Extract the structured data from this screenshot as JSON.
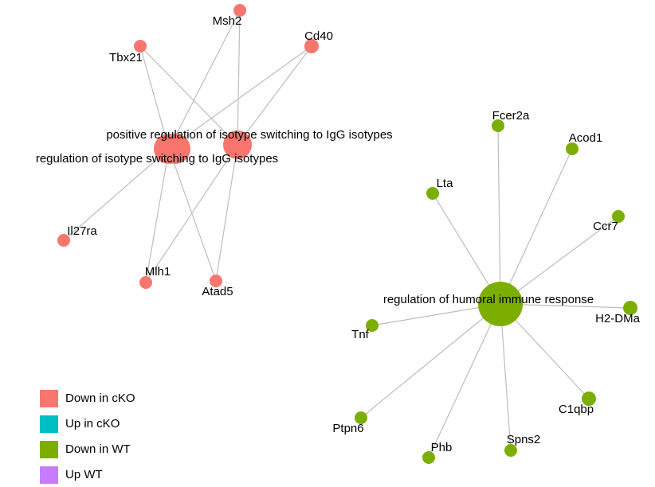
{
  "nodes": [
    {
      "label": "Msh2"
    },
    {
      "label": "Cd40"
    },
    {
      "label": "Tbx21"
    },
    {
      "label": "positive regulation of isotype switching to IgG isotypes"
    },
    {
      "label": "regulation of isotype switching to IgG isotypes"
    },
    {
      "label": "Il27ra"
    },
    {
      "label": "Mlh1"
    },
    {
      "label": "Atad5"
    },
    {
      "label": "regulation of humoral immune response"
    },
    {
      "label": "Fcer2a"
    },
    {
      "label": "Acod1"
    },
    {
      "label": "Lta"
    },
    {
      "label": "Ccr7"
    },
    {
      "label": "H2-DMa"
    },
    {
      "label": "Tnf"
    },
    {
      "label": "C1qbp"
    },
    {
      "label": "Ptpn6"
    },
    {
      "label": "Phb"
    },
    {
      "label": "Spns2"
    }
  ],
  "legend": [
    {
      "name": "Down in cKO",
      "color": "#F8766D"
    },
    {
      "name": "Up in cKO",
      "color": "#00BFC4"
    },
    {
      "name": "Down in WT",
      "color": "#7CAE00"
    },
    {
      "name": "Up WT",
      "color": "#C77CFF"
    }
  ]
}
